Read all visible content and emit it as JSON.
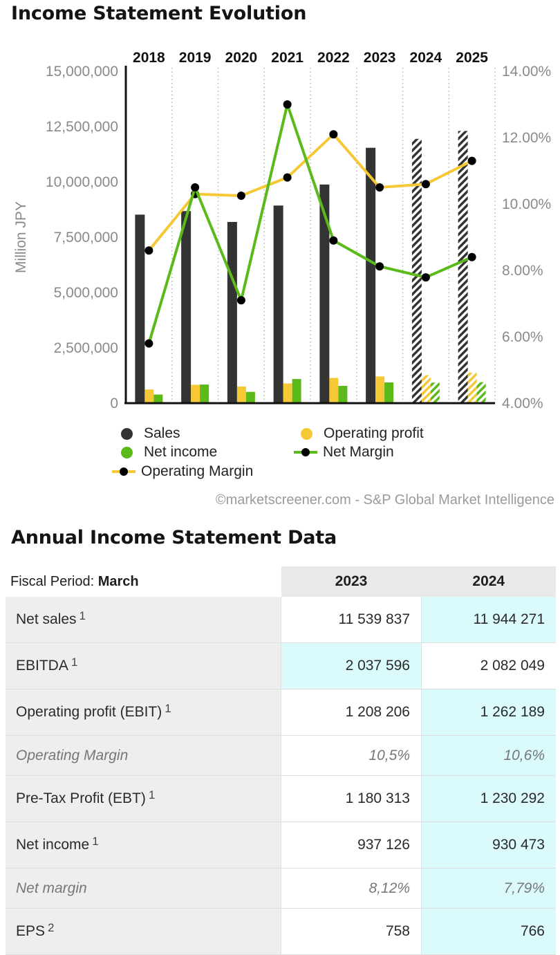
{
  "chart_title": "Income Statement Evolution",
  "chart_data": {
    "type": "bar",
    "categories": [
      "2018",
      "2019",
      "2020",
      "2021",
      "2022",
      "2023",
      "2024",
      "2025"
    ],
    "estimated_from": "2024",
    "ylabel": "Million JPY",
    "ylim": [
      0,
      15000000
    ],
    "y_ticks": [
      "0",
      "2,500,000",
      "5,000,000",
      "7,500,000",
      "10,000,000",
      "12,500,000",
      "15,000,000"
    ],
    "y2lim": [
      4,
      14
    ],
    "y2_ticks": [
      "4.00%",
      "6.00%",
      "8.00%",
      "10.00%",
      "12.00%",
      "14.00%"
    ],
    "series": [
      {
        "name": "Sales",
        "kind": "bar",
        "color": "#333333",
        "values": [
          8520000,
          8680000,
          8190000,
          8930000,
          9880000,
          11539837,
          11944271,
          12300000
        ]
      },
      {
        "name": "Operating profit",
        "kind": "bar",
        "color": "#f5c835",
        "values": [
          620000,
          830000,
          750000,
          890000,
          1140000,
          1208206,
          1262189,
          1380000
        ]
      },
      {
        "name": "Net income",
        "kind": "bar",
        "color": "#5bb91a",
        "values": [
          390000,
          840000,
          510000,
          1090000,
          780000,
          937126,
          930473,
          950000
        ]
      },
      {
        "name": "Net Margin",
        "kind": "line",
        "axis": "right",
        "color": "#5bb91a",
        "values": [
          5.8,
          10.5,
          7.1,
          13.0,
          8.9,
          8.12,
          7.79,
          8.4
        ]
      },
      {
        "name": "Operating Margin",
        "kind": "line",
        "axis": "right",
        "color": "#f5c835",
        "values": [
          8.6,
          10.3,
          10.25,
          10.8,
          12.1,
          10.5,
          10.6,
          11.3
        ]
      }
    ],
    "legend": [
      "Sales",
      "Operating profit",
      "Net income",
      "Net Margin",
      "Operating Margin"
    ],
    "legend_position": "bottom",
    "grid": "vertical dotted"
  },
  "source": "©marketscreener.com - S&P Global Market Intelligence",
  "table": {
    "title": "Annual Income Statement Data",
    "period_label": "Fiscal Period:",
    "period_value": "March",
    "columns": [
      "2023",
      "2024"
    ],
    "rows": [
      {
        "label": "Net sales",
        "note": "1",
        "values": [
          "11 539 837",
          "11 944 271"
        ]
      },
      {
        "label": "EBITDA",
        "note": "1",
        "values": [
          "2 037 596",
          "2 082 049"
        ]
      },
      {
        "label": "Operating profit (EBIT)",
        "note": "1",
        "values": [
          "1 208 206",
          "1 262 189"
        ]
      },
      {
        "label": "Operating Margin",
        "note": "",
        "values": [
          "10,5%",
          "10,6%"
        ]
      },
      {
        "label": "Pre-Tax Profit (EBT)",
        "note": "1",
        "values": [
          "1 180 313",
          "1 230 292"
        ]
      },
      {
        "label": "Net income",
        "note": "1",
        "values": [
          "937 126",
          "930 473"
        ]
      },
      {
        "label": "Net margin",
        "note": "",
        "values": [
          "8,12%",
          "7,79%"
        ]
      },
      {
        "label": "EPS",
        "note": "2",
        "values": [
          "758",
          "766"
        ]
      }
    ]
  }
}
